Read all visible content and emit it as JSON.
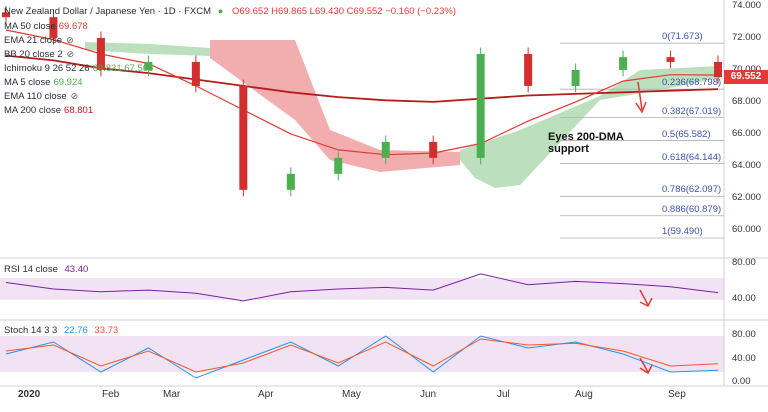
{
  "header": {
    "title": "New Zealand Dollar / Japanese Yen · 1D · FXCM",
    "ohlc": "O69.652 H69.865 L69.430 C69.552 −0.160 (−0.23%)"
  },
  "legend": [
    {
      "label": "MA 50 close",
      "value": "69.678",
      "color": "#e53935",
      "eye": false
    },
    {
      "label": "EMA 21 close",
      "value": "",
      "color": "#888888",
      "eye": true
    },
    {
      "label": "BB 20 close 2",
      "value": "",
      "color": "#888888",
      "eye": true
    },
    {
      "label": "Ichimoku 9 26 52 26",
      "value": "69.831 67.565",
      "color": "#4caf50",
      "eye": false
    },
    {
      "label": "MA 5 close",
      "value": "69.924",
      "color": "#4caf50",
      "eye": false
    },
    {
      "label": "EMA 110 close",
      "value": "",
      "color": "#888888",
      "eye": true
    },
    {
      "label": "MA 200 close",
      "value": "68.801",
      "color": "#b71c1c",
      "eye": false
    }
  ],
  "price_axis": [
    "74.000",
    "72.000",
    "70.000",
    "68.000",
    "66.000",
    "64.000",
    "62.000",
    "60.000"
  ],
  "current_price": "69.552",
  "fib_levels": [
    {
      "ratio": "0",
      "price": "(71.673)",
      "value": 71.673
    },
    {
      "ratio": "0.236",
      "price": "(68.798)",
      "value": 68.798
    },
    {
      "ratio": "0.382",
      "price": "(67.019)",
      "value": 67.019
    },
    {
      "ratio": "0.5",
      "price": "(65.582)",
      "value": 65.582
    },
    {
      "ratio": "0.618",
      "price": "(64.144)",
      "value": 64.144
    },
    {
      "ratio": "0.786",
      "price": "(62.097)",
      "value": 62.097
    },
    {
      "ratio": "0.886",
      "price": "(60.879)",
      "value": 60.879
    },
    {
      "ratio": "1",
      "price": "(59.490)",
      "value": 59.49
    }
  ],
  "annotation": {
    "line1": "Eyes 200-DMA",
    "line2": "support"
  },
  "x_labels": [
    "2020",
    "Feb",
    "Mar",
    "Apr",
    "May",
    "Jun",
    "Jul",
    "Aug",
    "Sep"
  ],
  "rsi": {
    "title": "RSI 14 close",
    "value": "43.40",
    "axis": [
      "80.00",
      "40.00"
    ]
  },
  "stoch": {
    "title": "Stoch 14 3 3",
    "k": "22.76",
    "d": "33.73",
    "axis": [
      "80.00",
      "40.00",
      "0.00"
    ]
  },
  "colors": {
    "up": "#26a69a",
    "down": "#ef5350",
    "candle_up": "#4caf50",
    "candle_down": "#d32f2f",
    "ma50": "#e53935",
    "ma200": "#b71c1c",
    "cloud_bull": "#a5d6a7",
    "cloud_bear": "#ef9a9a",
    "rsi": "#7b1fa2",
    "rsi_band": "#e1bee7",
    "stoch_k": "#2196f3",
    "stoch_d": "#ff5722"
  },
  "chart_data": {
    "type": "candlestick",
    "x": [
      "2020-01-01",
      "2020-01-15",
      "2020-02-01",
      "2020-02-15",
      "2020-03-01",
      "2020-03-15",
      "2020-04-01",
      "2020-04-15",
      "2020-05-01",
      "2020-05-15",
      "2020-06-01",
      "2020-06-15",
      "2020-07-01",
      "2020-07-15",
      "2020-08-01",
      "2020-08-15"
    ],
    "close": [
      73.3,
      72.0,
      70.0,
      70.5,
      69.0,
      62.5,
      63.5,
      64.5,
      65.5,
      64.5,
      71.0,
      69.0,
      70.0,
      70.8,
      70.5,
      69.55
    ],
    "ma200": [
      70.9,
      70.6,
      70.1,
      69.8,
      69.4,
      69.0,
      68.6,
      68.3,
      68.1,
      68.0,
      68.2,
      68.4,
      68.5,
      68.6,
      68.7,
      68.8
    ],
    "ma50": [
      72.5,
      71.9,
      71.0,
      70.4,
      69.0,
      67.5,
      66.0,
      65.0,
      64.7,
      64.8,
      65.4,
      66.8,
      68.0,
      69.3,
      69.7,
      69.68
    ],
    "rsi": [
      62,
      50,
      45,
      48,
      42,
      28,
      45,
      50,
      53,
      48,
      78,
      58,
      64,
      60,
      54,
      43.4
    ],
    "stoch_k": [
      50,
      70,
      20,
      60,
      10,
      40,
      70,
      30,
      80,
      20,
      80,
      60,
      70,
      50,
      20,
      22.76
    ],
    "stoch_d": [
      55,
      65,
      30,
      55,
      20,
      35,
      65,
      35,
      70,
      30,
      75,
      65,
      68,
      55,
      30,
      33.73
    ],
    "ylim": [
      58.8,
      74.0
    ]
  }
}
